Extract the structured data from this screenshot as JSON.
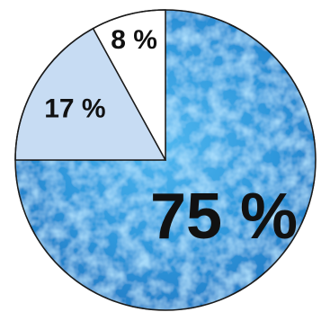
{
  "chart_data": {
    "type": "pie",
    "slices": [
      {
        "label": "75 %",
        "value": 75,
        "fill": "texture-blue-ice",
        "color": "#39a6e6"
      },
      {
        "label": "17 %",
        "value": 17,
        "fill": "solid",
        "color": "#c7dcf3"
      },
      {
        "label": "8 %",
        "value": 8,
        "fill": "solid",
        "color": "#ffffff"
      }
    ],
    "start_angle_deg": 0,
    "direction": "counterclockwise-from-top",
    "stroke_color": "#1a1a1a",
    "title": "",
    "legend": "none"
  }
}
